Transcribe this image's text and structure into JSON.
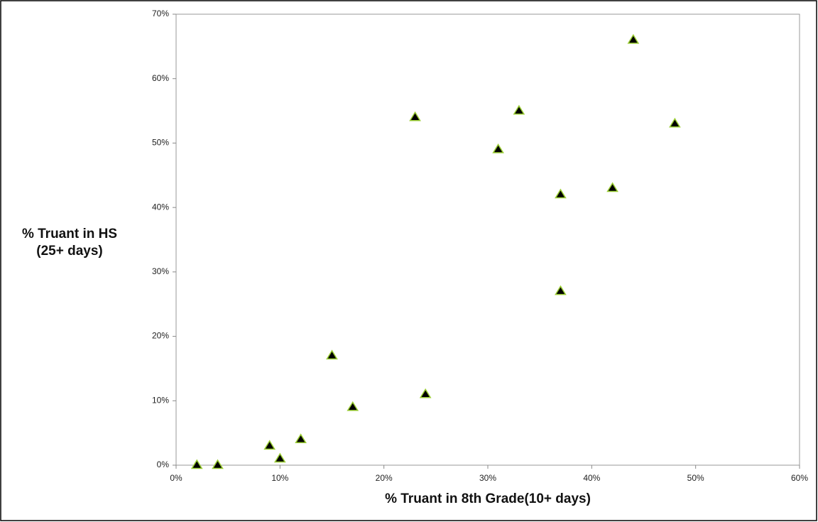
{
  "chart_data": {
    "type": "scatter",
    "xlabel": "% Truant in 8th Grade(10+ days)",
    "ylabel": [
      "% Truant in HS",
      "(25+ days)"
    ],
    "series": [
      {
        "color": "#000000",
        "edgecolor": "#9acd32",
        "x": [
          2,
          4,
          9,
          10,
          12,
          15,
          17,
          23,
          24,
          31,
          33,
          37,
          37,
          42,
          44,
          48
        ],
        "values": [
          0,
          0,
          3,
          1,
          4,
          17,
          9,
          54,
          11,
          49,
          55,
          42,
          27,
          43,
          66,
          53
        ]
      }
    ],
    "xlim": [
      0,
      60
    ],
    "xticks": [
      {
        "value": 0,
        "label": "0%"
      },
      {
        "value": 10,
        "label": "10%"
      },
      {
        "value": 20,
        "label": "20%"
      },
      {
        "value": 30,
        "label": "30%"
      },
      {
        "value": 40,
        "label": "40%"
      },
      {
        "value": 50,
        "label": "50%"
      },
      {
        "value": 60,
        "label": "60%"
      }
    ],
    "ylim": [
      0,
      70
    ],
    "yticks": [
      {
        "value": 0,
        "label": "0%"
      },
      {
        "value": 10,
        "label": "10%"
      },
      {
        "value": 20,
        "label": "20%"
      },
      {
        "value": 30,
        "label": "30%"
      },
      {
        "value": 40,
        "label": "40%"
      },
      {
        "value": 50,
        "label": "50%"
      },
      {
        "value": 60,
        "label": "60%"
      },
      {
        "value": 70,
        "label": "70%"
      }
    ],
    "grid": false
  }
}
